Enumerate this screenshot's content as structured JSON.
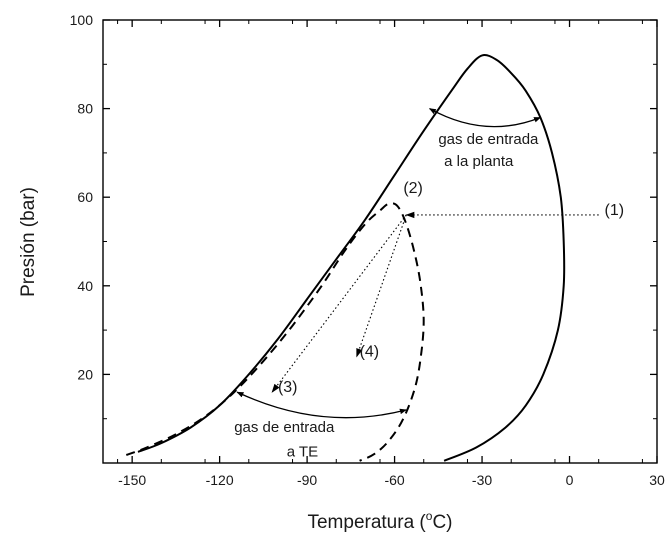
{
  "chart_data": {
    "type": "line",
    "xlabel": "Temperatura (°C)",
    "xlabel_main": "Temperatura (",
    "xlabel_sup": "o",
    "xlabel_unit": "C)",
    "ylabel": "Presión (bar)",
    "xlim": [
      -160,
      30
    ],
    "ylim": [
      0,
      100
    ],
    "xticks": [
      -150,
      -120,
      -90,
      -60,
      -30,
      0,
      30
    ],
    "xtick_labels": [
      "-150",
      "-120",
      "-90",
      "-60",
      "-30",
      "0",
      "30"
    ],
    "yticks": [
      20,
      40,
      60,
      80,
      100
    ],
    "ytick_labels": [
      "20",
      "40",
      "60",
      "80",
      "100"
    ],
    "grid": false,
    "series": [
      {
        "style": "solid",
        "color": "#000000",
        "points": [
          [
            -148,
            2.5
          ],
          [
            -140,
            4.5
          ],
          [
            -130,
            8
          ],
          [
            -120,
            13
          ],
          [
            -110,
            20
          ],
          [
            -100,
            28
          ],
          [
            -90,
            37
          ],
          [
            -80,
            46
          ],
          [
            -70,
            55
          ],
          [
            -60,
            65
          ],
          [
            -50,
            75
          ],
          [
            -40,
            84.5
          ],
          [
            -35,
            89
          ],
          [
            -30,
            92
          ],
          [
            -25,
            91
          ],
          [
            -20,
            88
          ],
          [
            -15,
            84
          ],
          [
            -10,
            78
          ],
          [
            -6,
            70
          ],
          [
            -3,
            60
          ],
          [
            -2,
            50
          ],
          [
            -2,
            40
          ],
          [
            -4,
            30
          ],
          [
            -9,
            20
          ],
          [
            -15,
            13
          ],
          [
            -22,
            8
          ],
          [
            -32,
            3.5
          ],
          [
            -43,
            0.5
          ]
        ]
      },
      {
        "style": "dashed",
        "color": "#000000",
        "points": [
          [
            -152,
            1.8
          ],
          [
            -145,
            3.5
          ],
          [
            -135,
            6.5
          ],
          [
            -125,
            10.5
          ],
          [
            -115,
            16
          ],
          [
            -105,
            23
          ],
          [
            -95,
            31
          ],
          [
            -85,
            40
          ],
          [
            -77,
            48
          ],
          [
            -70,
            54
          ],
          [
            -65,
            57
          ],
          [
            -62,
            58.5
          ],
          [
            -59,
            58
          ],
          [
            -56,
            54
          ],
          [
            -53,
            47
          ],
          [
            -51,
            40
          ],
          [
            -50,
            32
          ],
          [
            -51,
            24
          ],
          [
            -53,
            17
          ],
          [
            -57,
            10
          ],
          [
            -62,
            5
          ],
          [
            -67,
            2
          ],
          [
            -72,
            0.5
          ]
        ]
      }
    ],
    "arrows": [
      {
        "from": [
          10,
          56
        ],
        "to": [
          -56,
          56
        ],
        "style": "dotted",
        "label": "(1)"
      },
      {
        "from": [
          -56,
          56
        ],
        "to": [
          -73,
          24
        ],
        "style": "dotted",
        "label": "(4)"
      },
      {
        "from": [
          -56,
          56
        ],
        "to": [
          -102,
          16
        ],
        "style": "dotted",
        "label": "(3)"
      }
    ],
    "range_arrows": [
      {
        "from": [
          -48,
          80
        ],
        "to": [
          -10,
          78
        ],
        "label_lines": [
          "gas de entrada",
          "a la planta"
        ]
      },
      {
        "from": [
          -114,
          16
        ],
        "to": [
          -56,
          12
        ],
        "label_lines": [
          "gas de entrada",
          "a TE"
        ]
      }
    ],
    "annotations": [
      {
        "text": "(1)",
        "x": 12,
        "y": 56
      },
      {
        "text": "(2)",
        "x": -57,
        "y": 61
      },
      {
        "text": "(3)",
        "x": -100,
        "y": 16
      },
      {
        "text": "(4)",
        "x": -72,
        "y": 24
      },
      {
        "text": "gas de entrada",
        "x": -45,
        "y": 72
      },
      {
        "text": "a la planta",
        "x": -43,
        "y": 67
      },
      {
        "text": "gas de entrada",
        "x": -115,
        "y": 7
      },
      {
        "text": "a TE",
        "x": -97,
        "y": 1.5
      }
    ]
  }
}
